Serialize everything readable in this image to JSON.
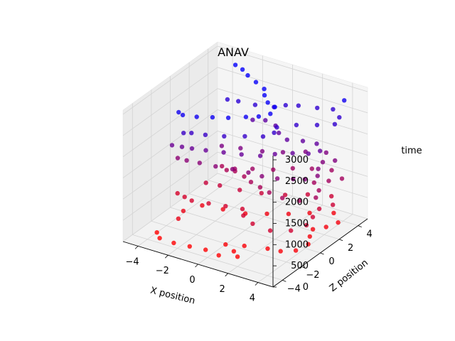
{
  "chart_data": {
    "type": "scatter",
    "projection": "3d",
    "title": "ANAV",
    "xlabel": "X position",
    "ylabel": "Z position",
    "zlabel": "time",
    "xlim": [
      -5,
      5
    ],
    "ylim": [
      -5,
      5
    ],
    "zlim": [
      0,
      3100
    ],
    "x_ticks": [
      -4,
      -2,
      0,
      2,
      4
    ],
    "y_ticks": [
      -4,
      -2,
      0,
      2,
      4
    ],
    "z_ticks": [
      0,
      500,
      1000,
      1500,
      2000,
      2500,
      3000
    ],
    "x_tick_labels": [
      "−4",
      "−2",
      "0",
      "2",
      "4"
    ],
    "y_tick_labels": [
      "−4",
      "−2",
      "0",
      "2",
      "4"
    ],
    "z_tick_labels": [
      "0",
      "500",
      "1000",
      "1500",
      "2000",
      "2500",
      "3000"
    ],
    "grid": true,
    "color_map": {
      "start": "#ff0000",
      "end": "#0000ff",
      "encodes": "time"
    },
    "series": [
      {
        "points": [
          [
            4.2,
            3.8,
            2900
          ],
          [
            -4.0,
            -3.0,
            0
          ],
          [
            -3.5,
            -3.5,
            0
          ],
          [
            -2.5,
            -3.6,
            10
          ],
          [
            -1.5,
            -3.5,
            20
          ],
          [
            -0.5,
            -3.4,
            30
          ],
          [
            0.5,
            -3.6,
            40
          ],
          [
            1.5,
            -3.2,
            50
          ],
          [
            1.0,
            -2.8,
            60
          ],
          [
            0.2,
            -2.4,
            70
          ],
          [
            1.2,
            -2.0,
            80
          ],
          [
            2.5,
            -1.6,
            90
          ],
          [
            3.3,
            -1.5,
            100
          ],
          [
            4.0,
            -1.0,
            110
          ],
          [
            4.2,
            0.0,
            120
          ],
          [
            3.8,
            0.8,
            130
          ],
          [
            3.5,
            1.6,
            140
          ],
          [
            4.0,
            2.2,
            150
          ],
          [
            4.3,
            3.0,
            160
          ],
          [
            3.5,
            3.8,
            170
          ],
          [
            2.4,
            3.0,
            180
          ],
          [
            1.5,
            2.2,
            190
          ],
          [
            0.5,
            1.5,
            200
          ],
          [
            -0.5,
            0.8,
            210
          ],
          [
            -1.8,
            0.5,
            220
          ],
          [
            -3.0,
            0.2,
            230
          ],
          [
            -3.5,
            -1.0,
            240
          ],
          [
            -3.2,
            -2.0,
            250
          ],
          [
            -4.2,
            -0.5,
            500
          ],
          [
            -3.6,
            -0.7,
            510
          ],
          [
            -3.0,
            -0.9,
            520
          ],
          [
            -2.0,
            -0.7,
            530
          ],
          [
            -1.0,
            -0.5,
            540
          ],
          [
            0.0,
            -0.3,
            550
          ],
          [
            0.5,
            -1.0,
            560
          ],
          [
            1.5,
            -1.6,
            570
          ],
          [
            2.8,
            -1.8,
            580
          ],
          [
            3.8,
            -1.2,
            590
          ],
          [
            4.2,
            -0.2,
            600
          ],
          [
            4.0,
            0.8,
            610
          ],
          [
            3.8,
            1.8,
            620
          ],
          [
            4.2,
            2.6,
            630
          ],
          [
            3.6,
            3.4,
            640
          ],
          [
            2.4,
            2.8,
            650
          ],
          [
            1.4,
            2.0,
            660
          ],
          [
            0.2,
            1.4,
            670
          ],
          [
            -1.0,
            1.0,
            680
          ],
          [
            -2.2,
            0.8,
            690
          ],
          [
            -3.0,
            0.6,
            700
          ],
          [
            -2.5,
            1.5,
            1000
          ],
          [
            -2.0,
            1.2,
            1010
          ],
          [
            -1.5,
            1.3,
            1020
          ],
          [
            -0.7,
            1.0,
            1030
          ],
          [
            0.0,
            0.6,
            1040
          ],
          [
            0.8,
            0.3,
            1050
          ],
          [
            1.6,
            0.0,
            1060
          ],
          [
            2.6,
            -0.2,
            1070
          ],
          [
            3.6,
            0.0,
            1080
          ],
          [
            4.2,
            0.8,
            1090
          ],
          [
            3.9,
            1.6,
            1100
          ],
          [
            3.2,
            2.2,
            1110
          ],
          [
            3.8,
            2.8,
            1120
          ],
          [
            4.3,
            3.4,
            1130
          ],
          [
            3.3,
            3.9,
            1140
          ],
          [
            2.3,
            3.4,
            1150
          ],
          [
            1.4,
            2.8,
            1160
          ],
          [
            0.6,
            2.0,
            1170
          ],
          [
            -0.4,
            1.4,
            1180
          ],
          [
            -1.2,
            0.8,
            1190
          ],
          [
            -4.0,
            -0.8,
            1400
          ],
          [
            -3.4,
            -0.8,
            1410
          ],
          [
            -2.6,
            -0.7,
            1420
          ],
          [
            -1.6,
            -0.6,
            1430
          ],
          [
            -0.6,
            -0.4,
            1440
          ],
          [
            0.4,
            -0.3,
            1450
          ],
          [
            1.3,
            -0.3,
            1460
          ],
          [
            2.2,
            -0.1,
            1470
          ],
          [
            3.0,
            0.3,
            1480
          ],
          [
            3.6,
            0.6,
            1490
          ],
          [
            4.0,
            1.3,
            1500
          ],
          [
            3.6,
            2.0,
            1510
          ],
          [
            3.4,
            2.8,
            1520
          ],
          [
            3.9,
            3.3,
            1530
          ],
          [
            3.0,
            3.8,
            1540
          ],
          [
            2.0,
            3.2,
            1550
          ],
          [
            1.0,
            2.4,
            1560
          ],
          [
            0.0,
            1.8,
            1570
          ],
          [
            -1.2,
            1.4,
            1580
          ],
          [
            -2.2,
            1.0,
            1590
          ],
          [
            -4.0,
            -1.4,
            1800
          ],
          [
            -3.4,
            -1.3,
            1810
          ],
          [
            -2.8,
            -1.2,
            1820
          ],
          [
            -2.0,
            -1.0,
            1830
          ],
          [
            -1.0,
            -0.7,
            1840
          ],
          [
            0.0,
            -0.4,
            1850
          ],
          [
            1.0,
            0.0,
            1860
          ],
          [
            1.6,
            0.6,
            1870
          ],
          [
            2.4,
            1.2,
            1880
          ],
          [
            3.2,
            1.6,
            1890
          ],
          [
            3.6,
            2.2,
            1900
          ],
          [
            3.0,
            2.8,
            1910
          ],
          [
            2.2,
            2.6,
            1920
          ],
          [
            1.4,
            2.2,
            1930
          ],
          [
            0.6,
            2.6,
            1940
          ],
          [
            0.0,
            3.2,
            1950
          ],
          [
            -0.8,
            3.4,
            1960
          ],
          [
            -1.4,
            3.0,
            1970
          ],
          [
            -2.6,
            -2.4,
            2400
          ],
          [
            -2.2,
            -2.2,
            2410
          ],
          [
            -1.4,
            -2.0,
            2420
          ],
          [
            -0.4,
            -1.6,
            2430
          ],
          [
            0.6,
            -1.0,
            2440
          ],
          [
            1.5,
            -0.5,
            2450
          ],
          [
            1.8,
            0.2,
            2460
          ],
          [
            1.6,
            0.8,
            2470
          ],
          [
            2.4,
            1.6,
            2480
          ],
          [
            3.4,
            2.2,
            2490
          ],
          [
            4.2,
            2.8,
            2500
          ],
          [
            4.0,
            3.6,
            2510
          ],
          [
            3.2,
            4.2,
            2520
          ],
          [
            2.4,
            3.8,
            2530
          ],
          [
            1.4,
            3.4,
            2540
          ],
          [
            0.8,
            3.0,
            2550
          ],
          [
            0.4,
            2.4,
            2560
          ],
          [
            -0.6,
            2.0,
            2570
          ],
          [
            -1.6,
            1.8,
            2580
          ],
          [
            -2.2,
            1.6,
            2590
          ],
          [
            -2.8,
            -2.6,
            2900
          ],
          [
            -2.4,
            -2.8,
            2910
          ],
          [
            -1.6,
            -2.6,
            2920
          ],
          [
            -0.8,
            -2.2,
            2930
          ],
          [
            0.0,
            -1.8,
            2940
          ],
          [
            0.8,
            -1.2,
            2950
          ],
          [
            1.4,
            -0.8,
            2960
          ],
          [
            1.8,
            -0.2,
            2970
          ],
          [
            1.6,
            0.6,
            2980
          ],
          [
            1.0,
            0.8,
            2990
          ],
          [
            0.4,
            1.4,
            3000
          ],
          [
            0.0,
            2.0,
            3010
          ],
          [
            -0.8,
            2.4,
            3020
          ],
          [
            -1.6,
            2.8,
            3030
          ],
          [
            -2.2,
            3.2,
            3040
          ],
          [
            -2.8,
            3.4,
            3050
          ]
        ]
      }
    ]
  }
}
